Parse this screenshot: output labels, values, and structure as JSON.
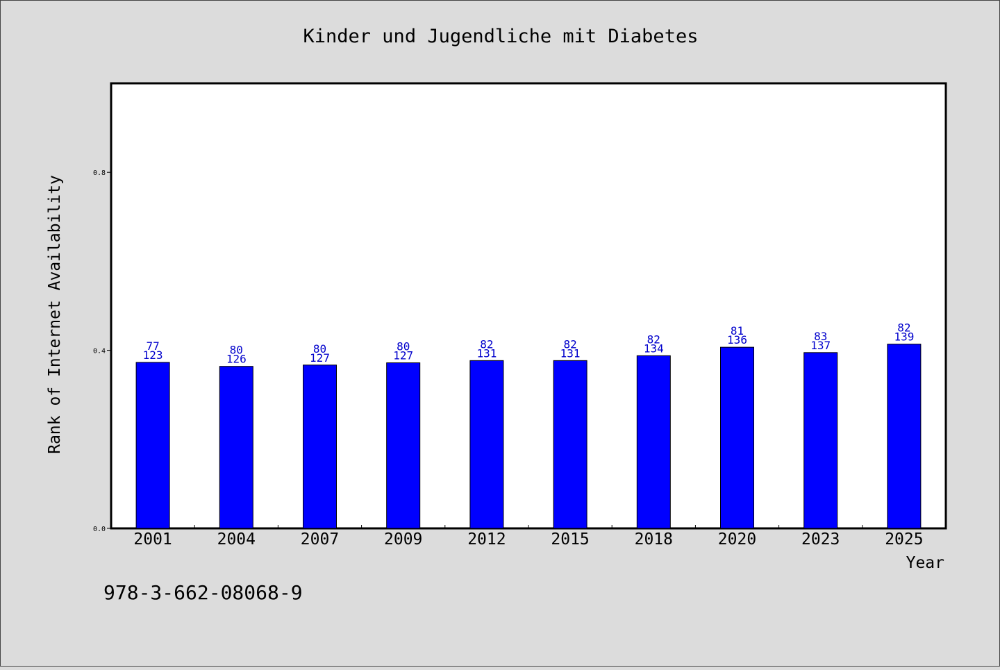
{
  "chart_data": {
    "type": "bar",
    "title": "Kinder und Jugendliche mit Diabetes",
    "xlabel": "Year",
    "ylabel": "Rank of Internet Availability",
    "categories": [
      "2001",
      "2004",
      "2007",
      "2009",
      "2012",
      "2015",
      "2018",
      "2020",
      "2023",
      "2025"
    ],
    "values": [
      0.373,
      0.364,
      0.367,
      0.372,
      0.377,
      0.377,
      0.388,
      0.407,
      0.395,
      0.414
    ],
    "label_top": [
      "77",
      "80",
      "80",
      "80",
      "82",
      "82",
      "82",
      "81",
      "83",
      "82"
    ],
    "label_bottom": [
      "123",
      "126",
      "127",
      "127",
      "131",
      "131",
      "134",
      "136",
      "137",
      "139"
    ],
    "yticks": [
      "0.0",
      "0.4",
      "0.8"
    ],
    "ylim": [
      0,
      1.0
    ],
    "grid": false,
    "legend": "none",
    "bar_color": "#0000ff",
    "label_color": "#0000cc"
  },
  "footer": {
    "isbn": "978-3-662-08068-9"
  }
}
